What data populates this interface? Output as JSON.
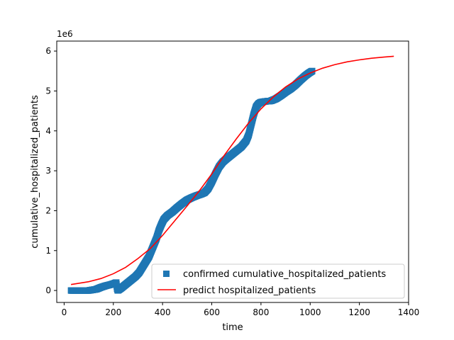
{
  "chart_data": {
    "type": "scatter",
    "title": "",
    "xlabel": "time",
    "ylabel": "cumulative_hospitalized_patients",
    "y_offset_text": "1e6",
    "xlim": [
      -30,
      1400
    ],
    "ylim": [
      -0.3,
      6.25
    ],
    "x_ticks": [
      0,
      200,
      400,
      600,
      800,
      1000,
      1200,
      1400
    ],
    "y_ticks": [
      0,
      1,
      2,
      3,
      4,
      5,
      6
    ],
    "grid": false,
    "legend_position": "lower-right",
    "series": [
      {
        "name": "confirmed cumulative_hospitalized_patients",
        "kind": "markers",
        "marker": "square",
        "color": "#1f77b4",
        "points": [
          [
            28,
            0.0
          ],
          [
            60,
            0.0
          ],
          [
            100,
            0.0
          ],
          [
            130,
            0.03
          ],
          [
            150,
            0.08
          ],
          [
            170,
            0.12
          ],
          [
            190,
            0.15
          ],
          [
            205,
            0.18
          ],
          [
            212,
            0.2
          ],
          [
            215,
            0.05
          ],
          [
            218,
            0.0
          ],
          [
            230,
            0.05
          ],
          [
            250,
            0.15
          ],
          [
            270,
            0.25
          ],
          [
            290,
            0.35
          ],
          [
            305,
            0.45
          ],
          [
            320,
            0.6
          ],
          [
            335,
            0.75
          ],
          [
            345,
            0.85
          ],
          [
            355,
            1.0
          ],
          [
            365,
            1.15
          ],
          [
            375,
            1.3
          ],
          [
            385,
            1.5
          ],
          [
            395,
            1.65
          ],
          [
            405,
            1.78
          ],
          [
            420,
            1.88
          ],
          [
            440,
            1.97
          ],
          [
            460,
            2.08
          ],
          [
            480,
            2.18
          ],
          [
            500,
            2.27
          ],
          [
            520,
            2.33
          ],
          [
            540,
            2.38
          ],
          [
            555,
            2.41
          ],
          [
            570,
            2.45
          ],
          [
            585,
            2.55
          ],
          [
            600,
            2.72
          ],
          [
            615,
            2.92
          ],
          [
            630,
            3.1
          ],
          [
            645,
            3.22
          ],
          [
            660,
            3.3
          ],
          [
            680,
            3.4
          ],
          [
            700,
            3.5
          ],
          [
            720,
            3.6
          ],
          [
            740,
            3.75
          ],
          [
            750,
            3.9
          ],
          [
            760,
            4.15
          ],
          [
            770,
            4.4
          ],
          [
            780,
            4.6
          ],
          [
            790,
            4.68
          ],
          [
            800,
            4.72
          ],
          [
            820,
            4.74
          ],
          [
            840,
            4.75
          ],
          [
            860,
            4.8
          ],
          [
            880,
            4.88
          ],
          [
            900,
            4.97
          ],
          [
            920,
            5.05
          ],
          [
            940,
            5.15
          ],
          [
            960,
            5.27
          ],
          [
            980,
            5.38
          ],
          [
            995,
            5.45
          ],
          [
            1008,
            5.5
          ]
        ]
      },
      {
        "name": "predict hospitalized_patients",
        "kind": "line",
        "color": "#ff0000",
        "points": [
          [
            28,
            0.15
          ],
          [
            100,
            0.22
          ],
          [
            150,
            0.3
          ],
          [
            200,
            0.42
          ],
          [
            250,
            0.58
          ],
          [
            300,
            0.8
          ],
          [
            350,
            1.05
          ],
          [
            400,
            1.38
          ],
          [
            450,
            1.75
          ],
          [
            500,
            2.12
          ],
          [
            550,
            2.5
          ],
          [
            600,
            2.92
          ],
          [
            650,
            3.38
          ],
          [
            700,
            3.8
          ],
          [
            750,
            4.2
          ],
          [
            800,
            4.55
          ],
          [
            850,
            4.85
          ],
          [
            900,
            5.1
          ],
          [
            950,
            5.3
          ],
          [
            1000,
            5.45
          ],
          [
            1050,
            5.57
          ],
          [
            1100,
            5.66
          ],
          [
            1150,
            5.73
          ],
          [
            1200,
            5.78
          ],
          [
            1250,
            5.82
          ],
          [
            1300,
            5.85
          ],
          [
            1340,
            5.87
          ]
        ]
      }
    ]
  }
}
